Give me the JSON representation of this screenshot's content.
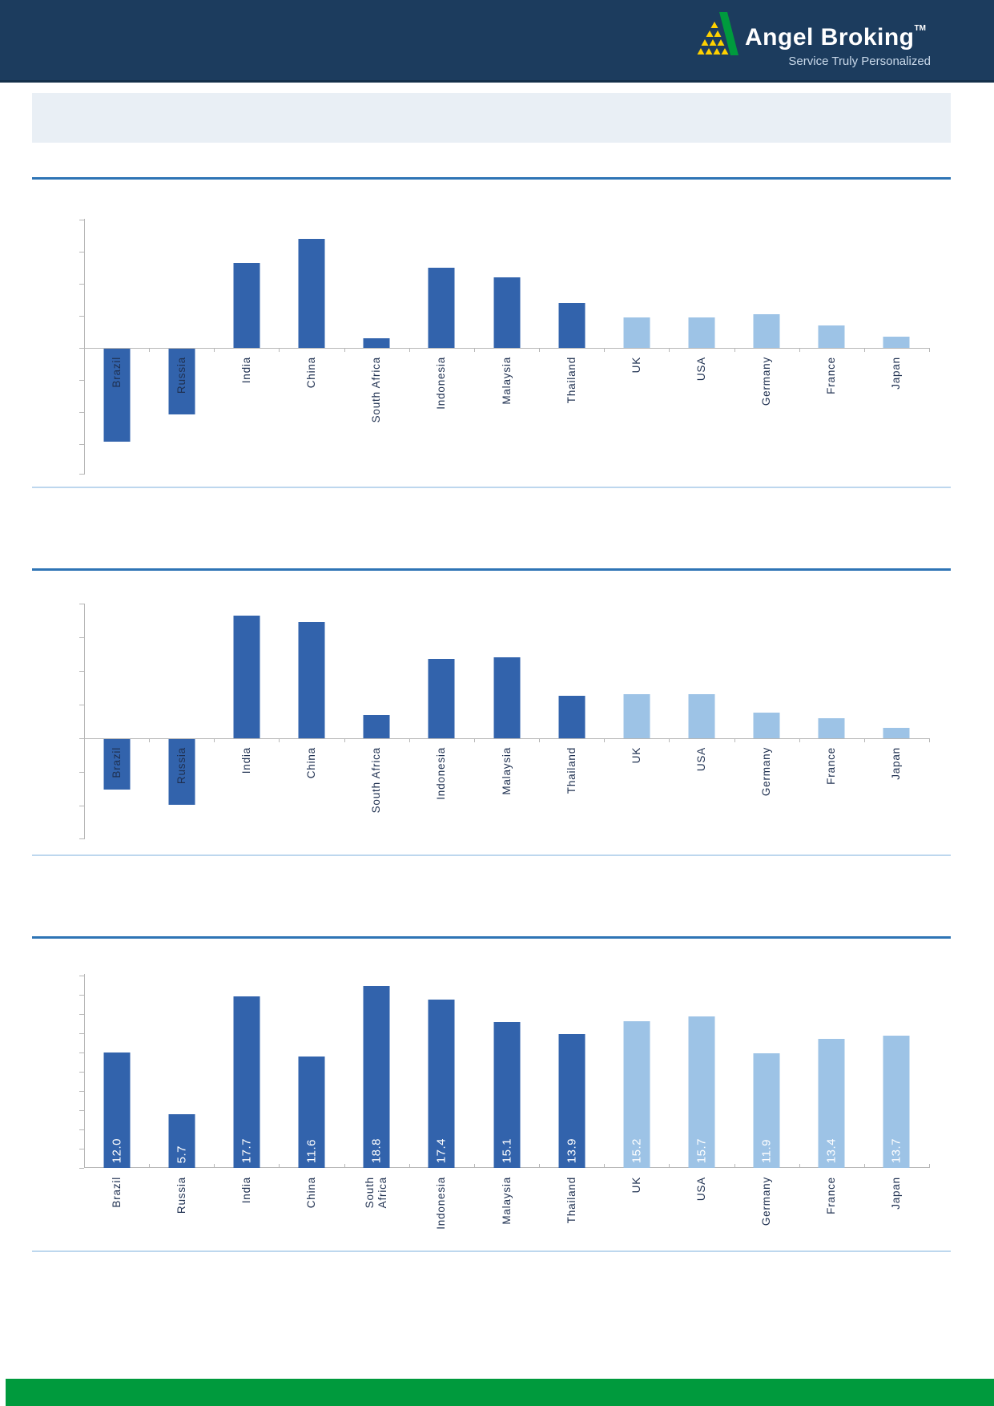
{
  "header": {
    "brand": "Angel Broking",
    "trademark": "TM",
    "tagline": "Service Truly Personalized",
    "background": "#1C3C5E"
  },
  "title_banner": {
    "text": ""
  },
  "colors": {
    "bar_dark_blue_emerging": "#3263AC",
    "bar_light_blue_developed": "#9DC3E6",
    "divider_blue": "#2E74B5",
    "underline_pale_blue": "#BDD7EE",
    "banner_background": "#E9EFF5",
    "footer_green": "#009A3D",
    "logo_yellow": "#FFD100",
    "logo_green": "#009A3D",
    "data_label_white": "#ffffff"
  },
  "categories": [
    "Brazil",
    "Russia",
    "India",
    "China",
    "South Africa",
    "Indonesia",
    "Malaysia",
    "Thailand",
    "UK",
    "USA",
    "Germany",
    "France",
    "Japan"
  ],
  "chart_data": [
    {
      "type": "bar",
      "title": "",
      "categories": [
        "Brazil",
        "Russia",
        "India",
        "China",
        "South Africa",
        "Indonesia",
        "Malaysia",
        "Thailand",
        "UK",
        "USA",
        "Germany",
        "France",
        "Japan"
      ],
      "values": [
        -2.9,
        -2.05,
        2.65,
        3.4,
        0.3,
        2.5,
        2.2,
        1.4,
        0.95,
        0.95,
        1.05,
        0.7,
        0.35
      ],
      "value_note": "axis unlabeled; values estimated in gridline units, one gridline = 1 unit",
      "ylim_gridline_units": [
        -4,
        4
      ],
      "gridlines": false,
      "legend": "none",
      "bar_color_groups": {
        "dark_first_n": 8,
        "light_last_n": 5
      }
    },
    {
      "type": "bar",
      "title": "",
      "categories": [
        "Brazil",
        "Russia",
        "India",
        "China",
        "South Africa",
        "Indonesia",
        "Malaysia",
        "Thailand",
        "UK",
        "USA",
        "Germany",
        "France",
        "Japan"
      ],
      "values": [
        -1.5,
        -1.95,
        3.65,
        3.45,
        0.7,
        2.35,
        2.4,
        1.25,
        1.3,
        1.3,
        0.75,
        0.6,
        0.3
      ],
      "value_note": "axis unlabeled; values estimated in gridline units, one gridline = 1 unit",
      "ylim_gridline_units": [
        -3,
        4
      ],
      "gridlines": false,
      "legend": "none",
      "bar_color_groups": {
        "dark_first_n": 8,
        "light_last_n": 5
      }
    },
    {
      "type": "bar",
      "title": "",
      "categories": [
        "Brazil",
        "Russia",
        "India",
        "China",
        "South Africa",
        "Indonesia",
        "Malaysia",
        "Thailand",
        "UK",
        "USA",
        "Germany",
        "France",
        "Japan"
      ],
      "display_labels": [
        "Brazil",
        "Russia",
        "India",
        "China",
        "South\nAfrica",
        "Indonesia",
        "Malaysia",
        "Thailand",
        "UK",
        "USA",
        "Germany",
        "France",
        "Japan"
      ],
      "values": [
        12.0,
        5.7,
        17.7,
        11.6,
        18.8,
        17.4,
        15.1,
        13.9,
        15.2,
        15.7,
        11.9,
        13.4,
        13.7
      ],
      "data_labels": [
        "12.0",
        "5.7",
        "17.7",
        "11.6",
        "18.8",
        "17.4",
        "15.1",
        "13.9",
        "15.2",
        "15.7",
        "11.9",
        "13.4",
        "13.7"
      ],
      "value_note": "white data labels printed vertically inside bar bottoms; y-axis unlabeled and truncated (does not start at 0)",
      "gridlines": false,
      "legend": "none",
      "bar_color_groups": {
        "dark_first_n": 8,
        "light_last_n": 5
      }
    }
  ]
}
